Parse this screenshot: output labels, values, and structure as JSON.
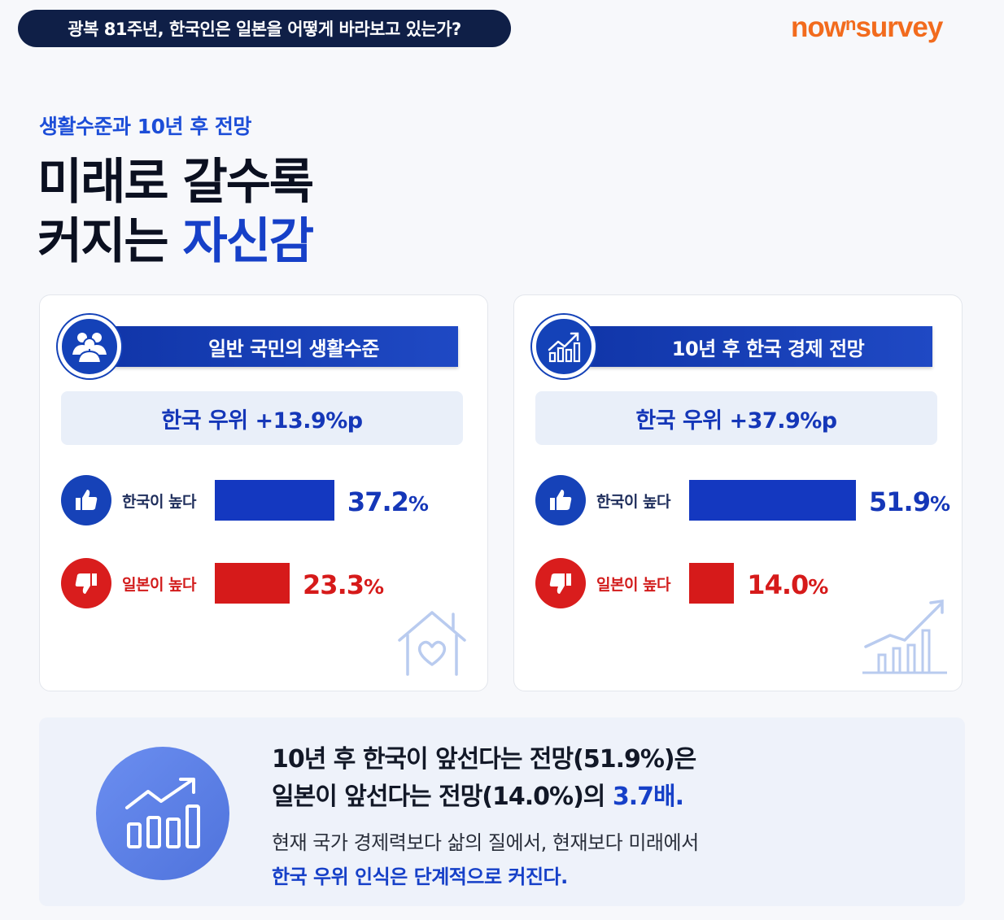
{
  "header": {
    "topic": "광복 81주년, 한국인은 일본을 어떻게 바라보고 있는가?",
    "logo_main": "now",
    "logo_sup": "n",
    "logo_tail": "survey"
  },
  "section": {
    "subtitle": "생활수준과 10년 후 전망",
    "headline_line1": "미래로 갈수록",
    "headline_line2_plain": "커지는 ",
    "headline_line2_accent": "자신감"
  },
  "chart_data": [
    {
      "type": "bar",
      "title": "일반 국민의 생활수준",
      "gap_label": "한국 우위 +13.9%p",
      "categories": [
        "한국이 높다",
        "일본이 높다"
      ],
      "values": [
        37.2,
        23.3
      ],
      "value_labels": [
        "37.2",
        "23.3"
      ],
      "unit": "%",
      "colors": [
        "#1438c0",
        "#d61a1a"
      ]
    },
    {
      "type": "bar",
      "title": "10년 후 한국 경제 전망",
      "gap_label": "한국 우위 +37.9%p",
      "categories": [
        "한국이 높다",
        "일본이 높다"
      ],
      "values": [
        51.9,
        14.0
      ],
      "value_labels": [
        "51.9",
        "14.0"
      ],
      "unit": "%",
      "colors": [
        "#1438c0",
        "#d61a1a"
      ]
    }
  ],
  "icons": {
    "card1_header": "people-group-icon",
    "card2_header": "growth-chart-icon",
    "positive": "thumbs-up-icon",
    "negative": "thumbs-down-icon",
    "card1_deco": "house-heart-icon",
    "card2_deco": "rising-bars-icon",
    "summary": "growth-chart-icon"
  },
  "summary": {
    "line1": "10년 후 한국이 앞선다는 전망(51.9%)은",
    "line2_plain": "일본이 앞선다는 전망(14.0%)의 ",
    "line2_accent": "3.7배.",
    "line3": "현재 국가 경제력보다 삶의 질에서, 현재보다 미래에서",
    "line4": "한국 우위 인식은 단계적으로 커진다."
  },
  "colors": {
    "navy": "#0f1f47",
    "brand_orange": "#f26b1d",
    "korea_blue": "#1438c0",
    "japan_red": "#d61a1a"
  }
}
